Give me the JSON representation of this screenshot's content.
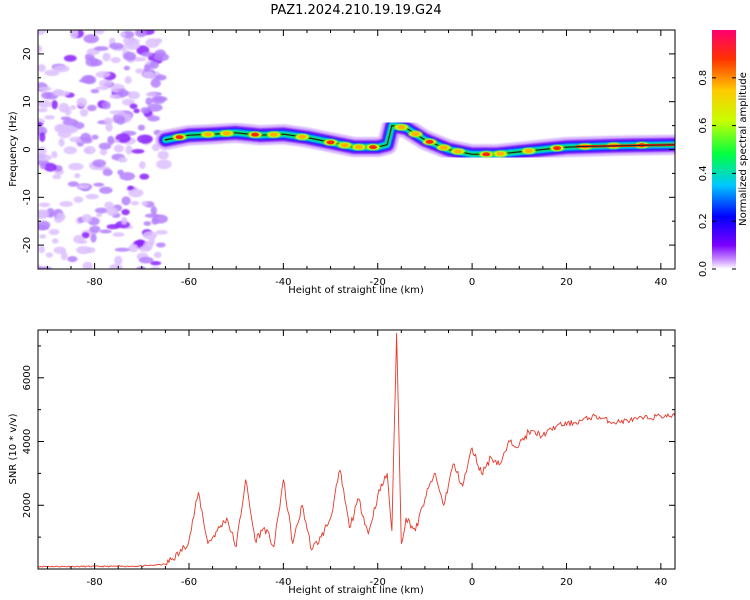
{
  "title": "PAZ1.2024.210.19.19.G24",
  "chart_data": [
    {
      "type": "heatmap",
      "xlabel": "Height of straight line (km)",
      "ylabel": "Frequency (Hz)",
      "xlim": [
        -92,
        43
      ],
      "ylim": [
        -25,
        25
      ],
      "xticks": [
        -80,
        -60,
        -40,
        -20,
        0,
        20,
        40
      ],
      "yticks": [
        -20,
        -10,
        0,
        10,
        20
      ],
      "colorbar": {
        "label": "Normalized spectral amplitude",
        "range": [
          0,
          1
        ],
        "ticks": [
          0.0,
          0.2,
          0.4,
          0.6,
          0.8
        ],
        "colormap": [
          "#ffffff",
          "#c88cff",
          "#7a00ff",
          "#0000ff",
          "#00c8ff",
          "#00ff40",
          "#c8ff00",
          "#ffc800",
          "#ff3000",
          "#ff0070"
        ]
      },
      "noise_region_x": [
        -92,
        -65
      ],
      "ridge": [
        {
          "x": -65,
          "y": 2.0
        },
        {
          "x": -60,
          "y": 3.0
        },
        {
          "x": -55,
          "y": 3.2
        },
        {
          "x": -50,
          "y": 3.5
        },
        {
          "x": -45,
          "y": 3.0
        },
        {
          "x": -40,
          "y": 3.2
        },
        {
          "x": -35,
          "y": 2.5
        },
        {
          "x": -30,
          "y": 1.5
        },
        {
          "x": -25,
          "y": 0.5
        },
        {
          "x": -20,
          "y": 0.5
        },
        {
          "x": -18,
          "y": 1.0
        },
        {
          "x": -17,
          "y": 5.0
        },
        {
          "x": -14,
          "y": 4.5
        },
        {
          "x": -10,
          "y": 2.0
        },
        {
          "x": -5,
          "y": 0.0
        },
        {
          "x": 0,
          "y": -1.0
        },
        {
          "x": 5,
          "y": -1.0
        },
        {
          "x": 10,
          "y": -0.5
        },
        {
          "x": 15,
          "y": 0.0
        },
        {
          "x": 20,
          "y": 0.5
        },
        {
          "x": 30,
          "y": 0.8
        },
        {
          "x": 43,
          "y": 1.0
        }
      ]
    },
    {
      "type": "line",
      "xlabel": "Height of straight line (km)",
      "ylabel": "SNR (10 * v/v)",
      "xlim": [
        -92,
        43
      ],
      "ylim": [
        0,
        7500
      ],
      "xticks": [
        -80,
        -60,
        -40,
        -20,
        0,
        20,
        40
      ],
      "yticks": [
        2000,
        4000,
        6000
      ],
      "series": [
        {
          "color": "#e8392b",
          "points": [
            [
              -92,
              80
            ],
            [
              -80,
              80
            ],
            [
              -70,
              90
            ],
            [
              -65,
              150
            ],
            [
              -62,
              500
            ],
            [
              -60,
              900
            ],
            [
              -58,
              2400
            ],
            [
              -56,
              800
            ],
            [
              -54,
              1200
            ],
            [
              -52,
              1600
            ],
            [
              -50,
              700
            ],
            [
              -48,
              2800
            ],
            [
              -46,
              900
            ],
            [
              -44,
              1300
            ],
            [
              -42,
              700
            ],
            [
              -40,
              2800
            ],
            [
              -38,
              800
            ],
            [
              -36,
              2000
            ],
            [
              -34,
              600
            ],
            [
              -32,
              1000
            ],
            [
              -30,
              1600
            ],
            [
              -28,
              3100
            ],
            [
              -26,
              1300
            ],
            [
              -24,
              2200
            ],
            [
              -22,
              1100
            ],
            [
              -20,
              2300
            ],
            [
              -18,
              3000
            ],
            [
              -17,
              1200
            ],
            [
              -16,
              7400
            ],
            [
              -15,
              800
            ],
            [
              -14,
              1600
            ],
            [
              -12,
              1200
            ],
            [
              -10,
              2200
            ],
            [
              -8,
              3000
            ],
            [
              -6,
              2000
            ],
            [
              -4,
              3300
            ],
            [
              -2,
              2600
            ],
            [
              0,
              3800
            ],
            [
              2,
              3000
            ],
            [
              4,
              3500
            ],
            [
              6,
              3300
            ],
            [
              8,
              4000
            ],
            [
              10,
              3900
            ],
            [
              12,
              4300
            ],
            [
              15,
              4200
            ],
            [
              18,
              4500
            ],
            [
              22,
              4600
            ],
            [
              26,
              4800
            ],
            [
              30,
              4600
            ],
            [
              35,
              4700
            ],
            [
              40,
              4800
            ],
            [
              43,
              4800
            ]
          ]
        }
      ]
    }
  ]
}
